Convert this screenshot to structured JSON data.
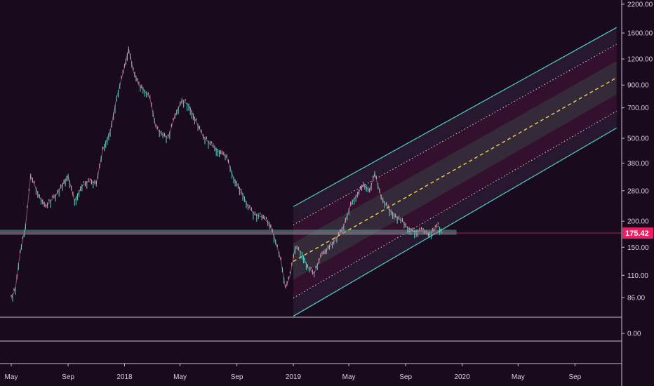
{
  "colors": {
    "background": "#1a0a1e",
    "candle_up": "#4fd1c5",
    "candle_down": "#e8a0b4",
    "channel_border": "#4fd1c5",
    "median_line": "#f2d24b",
    "inner_line": "#f0e6ef",
    "band_dark": "#2a1b33",
    "band_pink": "#3a1232",
    "band_gray": "#3a3040",
    "support_zone": "#6fb5b0",
    "price_line": "#d9386b",
    "price_label": "#e91e63",
    "axis_line": "#c9c0ca",
    "grid_sep": "#c9c0ca"
  },
  "chart_data": {
    "type": "line",
    "scale": "log",
    "x_ticks": [
      "May",
      "Sep",
      "2018",
      "May",
      "Sep",
      "2019",
      "May",
      "Sep",
      "2020",
      "May",
      "Sep"
    ],
    "y_ticks": [
      "2200.00",
      "1600.00",
      "1200.00",
      "900.00",
      "700.00",
      "500.00",
      "380.00",
      "280.00",
      "200.00",
      "150.00",
      "110.00",
      "86.00"
    ],
    "oscillator_ticks": [
      "0.00"
    ],
    "current_price": "175.42",
    "price_series": {
      "x": [
        "2017-05-01",
        "2017-05-10",
        "2017-05-20",
        "2017-06-01",
        "2017-06-12",
        "2017-06-20",
        "2017-07-01",
        "2017-07-15",
        "2017-07-25",
        "2017-08-05",
        "2017-08-20",
        "2017-09-01",
        "2017-09-15",
        "2017-10-01",
        "2017-10-15",
        "2017-11-01",
        "2017-11-15",
        "2017-12-01",
        "2017-12-15",
        "2018-01-01",
        "2018-01-10",
        "2018-01-20",
        "2018-02-01",
        "2018-02-10",
        "2018-02-25",
        "2018-03-10",
        "2018-03-25",
        "2018-04-05",
        "2018-04-20",
        "2018-05-05",
        "2018-05-20",
        "2018-06-05",
        "2018-06-20",
        "2018-07-05",
        "2018-07-25",
        "2018-08-10",
        "2018-08-25",
        "2018-09-10",
        "2018-09-25",
        "2018-10-10",
        "2018-10-25",
        "2018-11-10",
        "2018-11-20",
        "2018-12-05",
        "2018-12-15",
        "2018-12-25",
        "2019-01-05",
        "2019-01-20",
        "2019-02-01",
        "2019-02-15",
        "2019-03-01",
        "2019-03-20",
        "2019-04-05",
        "2019-04-20",
        "2019-05-05",
        "2019-05-20",
        "2019-06-01",
        "2019-06-15",
        "2019-06-26",
        "2019-07-10",
        "2019-07-25",
        "2019-08-10",
        "2019-08-25",
        "2019-09-05",
        "2019-09-20",
        "2019-10-05",
        "2019-10-20",
        "2019-11-01",
        "2019-11-10",
        "2019-11-20"
      ],
      "y": [
        85,
        95,
        140,
        190,
        330,
        300,
        260,
        235,
        250,
        265,
        300,
        330,
        250,
        295,
        310,
        305,
        440,
        540,
        780,
        1100,
        1350,
        1050,
        900,
        860,
        780,
        560,
        520,
        500,
        640,
        760,
        720,
        600,
        510,
        470,
        430,
        405,
        320,
        280,
        235,
        215,
        210,
        195,
        170,
        130,
        95,
        110,
        150,
        140,
        120,
        112,
        135,
        150,
        165,
        190,
        240,
        270,
        300,
        280,
        340,
        260,
        230,
        210,
        200,
        185,
        178,
        180,
        172,
        180,
        190,
        175
      ]
    },
    "channel": {
      "start": "2019-01-01",
      "end": "2020-11-30",
      "lower_start": 70,
      "lower_end": 560,
      "upper_start": 235,
      "upper_end": 1700,
      "bands": 5
    },
    "support_zone": {
      "from": "2017-05-20",
      "to": "2019-12-20",
      "low": 172,
      "high": 182
    }
  }
}
